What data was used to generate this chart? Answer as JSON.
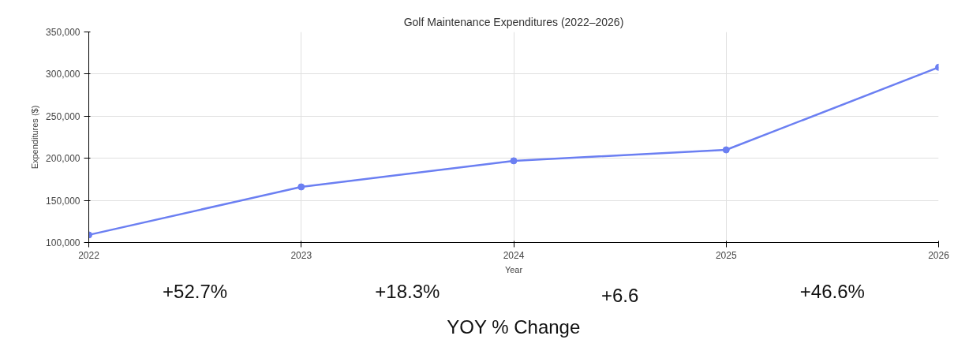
{
  "chart_data": {
    "type": "line",
    "title": "Golf Maintenance Expenditures (2022–2026)",
    "xlabel": "Year",
    "ylabel": "Expenditures ($)",
    "x": [
      2022,
      2023,
      2024,
      2025,
      2026
    ],
    "series": [
      {
        "color": "#6b7ff2",
        "values": [
          109000,
          166000,
          197000,
          210000,
          308000
        ]
      }
    ],
    "xlim": [
      2022,
      2026
    ],
    "xticks": [
      2022,
      2023,
      2024,
      2025,
      2026
    ],
    "ylim": [
      100000,
      350000
    ],
    "yticks": [
      {
        "value": 100000,
        "label": "100,000"
      },
      {
        "value": 150000,
        "label": "150,000"
      },
      {
        "value": 200000,
        "label": "200,000"
      },
      {
        "value": 250000,
        "label": "250,000"
      },
      {
        "value": 300000,
        "label": "300,000"
      },
      {
        "value": 350000,
        "label": "350,000"
      }
    ],
    "annotations": [
      "+52.7%",
      "+18.3%",
      "+6.6",
      "+46.6%",
      "YOY % Change"
    ],
    "grid": true,
    "marker": "circle",
    "line_style": "solid"
  }
}
